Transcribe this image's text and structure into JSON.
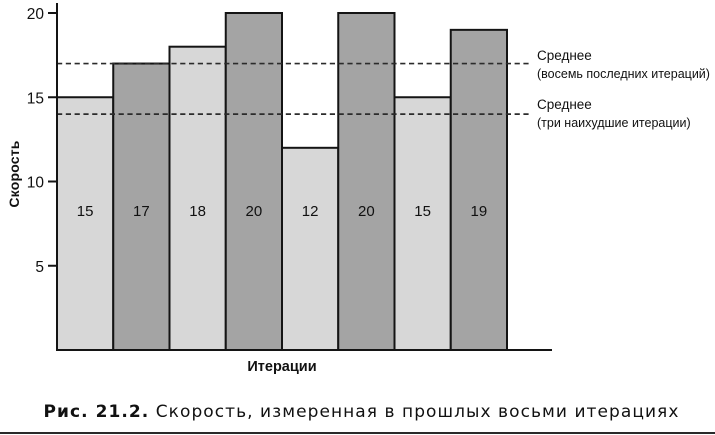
{
  "chart_data": {
    "type": "bar",
    "title": "",
    "xlabel": "Итерации",
    "ylabel": "Скорость",
    "values": [
      15,
      17,
      18,
      20,
      12,
      20,
      15,
      19
    ],
    "bar_value_labels": [
      "15",
      "17",
      "18",
      "20",
      "12",
      "20",
      "15",
      "19"
    ],
    "yticks": [
      5,
      10,
      15,
      20
    ],
    "ylim": [
      0,
      20.6
    ],
    "grid": false,
    "legend_position": "none",
    "bar_colors_alternating": [
      "#d7d7d7",
      "#a4a4a4"
    ],
    "bar_border_color": "#141414",
    "axis_color": "#141414",
    "reference_lines": [
      {
        "value": 17,
        "style": "dashed",
        "label": "Среднее",
        "sublabel": "(восемь последних итераций)"
      },
      {
        "value": 14,
        "style": "dashed",
        "label": "Среднее",
        "sublabel": "(три наихудшие итерации)"
      }
    ]
  },
  "caption": {
    "prefix": "Рис. 21.2.",
    "text": "Скорость, измеренная в прошлых восьми итерациях"
  }
}
